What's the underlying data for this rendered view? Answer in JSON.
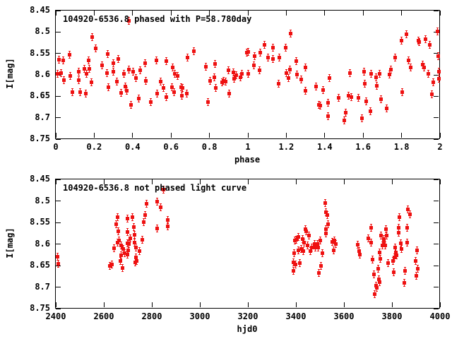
{
  "background_color": "#ffffff",
  "frame_color": "#000000",
  "point_color": "#ee1111",
  "marker": "filled-square-with-error-bar",
  "chart_data": [
    {
      "type": "scatter",
      "title": "104920-6536.8 phased with P=58.780day",
      "xlabel": "phase",
      "ylabel": "I[mag]",
      "xlim": [
        0,
        2
      ],
      "ylim": [
        8.45,
        8.75
      ],
      "y_axis_reversed": true,
      "grid": false,
      "legend": "none",
      "xticks": [
        "0",
        "0.2",
        "0.4",
        "0.6",
        "0.8",
        "1",
        "1.2",
        "1.4",
        "1.6",
        "1.8",
        "2"
      ],
      "yticks": [
        "8.45",
        "8.5",
        "8.55",
        "8.6",
        "8.65",
        "8.7",
        "8.75"
      ],
      "points": [
        [
          0.01,
          8.597
        ],
        [
          0.017,
          8.564
        ],
        [
          0.027,
          8.596
        ],
        [
          0.037,
          8.567
        ],
        [
          0.042,
          8.612
        ],
        [
          0.07,
          8.553
        ],
        [
          0.076,
          8.602
        ],
        [
          0.086,
          8.641
        ],
        [
          0.119,
          8.592
        ],
        [
          0.121,
          8.612
        ],
        [
          0.128,
          8.641
        ],
        [
          0.15,
          8.586
        ],
        [
          0.157,
          8.643
        ],
        [
          0.159,
          8.598
        ],
        [
          0.172,
          8.567
        ],
        [
          0.175,
          8.586
        ],
        [
          0.186,
          8.618
        ],
        [
          0.19,
          8.512
        ],
        [
          0.206,
          8.538
        ],
        [
          0.239,
          8.577
        ],
        [
          0.267,
          8.596
        ],
        [
          0.272,
          8.552
        ],
        [
          0.275,
          8.629
        ],
        [
          0.298,
          8.572
        ],
        [
          0.301,
          8.592
        ],
        [
          0.319,
          8.615
        ],
        [
          0.325,
          8.563
        ],
        [
          0.339,
          8.642
        ],
        [
          0.355,
          8.597
        ],
        [
          0.363,
          8.627
        ],
        [
          0.37,
          8.637
        ],
        [
          0.379,
          8.474
        ],
        [
          0.382,
          8.588
        ],
        [
          0.392,
          8.67
        ],
        [
          0.404,
          8.592
        ],
        [
          0.419,
          8.608
        ],
        [
          0.431,
          8.656
        ],
        [
          0.438,
          8.59
        ],
        [
          0.466,
          8.572
        ],
        [
          0.469,
          8.614
        ],
        [
          0.494,
          8.664
        ],
        [
          0.525,
          8.567
        ],
        [
          0.527,
          8.643
        ],
        [
          0.547,
          8.615
        ],
        [
          0.559,
          8.631
        ],
        [
          0.576,
          8.568
        ],
        [
          0.576,
          8.652
        ],
        [
          0.604,
          8.629
        ],
        [
          0.61,
          8.583
        ],
        [
          0.616,
          8.64
        ],
        [
          0.62,
          8.597
        ],
        [
          0.635,
          8.603
        ],
        [
          0.653,
          8.629
        ],
        [
          0.657,
          8.648
        ],
        [
          0.66,
          8.631
        ],
        [
          0.681,
          8.643
        ],
        [
          0.686,
          8.559
        ],
        [
          0.718,
          8.544
        ],
        [
          0.782,
          8.581
        ],
        [
          0.794,
          8.664
        ],
        [
          0.803,
          8.614
        ],
        [
          0.825,
          8.605
        ],
        [
          0.828,
          8.575
        ],
        [
          0.831,
          8.631
        ],
        [
          0.865,
          8.618
        ],
        [
          0.874,
          8.614
        ],
        [
          0.883,
          8.615
        ],
        [
          0.898,
          8.59
        ],
        [
          0.904,
          8.643
        ],
        [
          0.923,
          8.594
        ],
        [
          0.929,
          8.609
        ],
        [
          0.938,
          8.6
        ],
        [
          0.963,
          8.605
        ],
        [
          0.968,
          8.597
        ],
        [
          0.993,
          8.548
        ],
        [
          1.0,
          8.546
        ],
        [
          1.002,
          8.597
        ],
        [
          1.031,
          8.577
        ],
        [
          1.034,
          8.557
        ],
        [
          1.059,
          8.59
        ],
        [
          1.064,
          8.548
        ],
        [
          1.086,
          8.53
        ],
        [
          1.104,
          8.559
        ],
        [
          1.129,
          8.537
        ],
        [
          1.132,
          8.563
        ],
        [
          1.159,
          8.62
        ],
        [
          1.165,
          8.56
        ],
        [
          1.196,
          8.537
        ],
        [
          1.199,
          8.596
        ],
        [
          1.211,
          8.607
        ],
        [
          1.218,
          8.587
        ],
        [
          1.221,
          8.504
        ],
        [
          1.251,
          8.568
        ],
        [
          1.257,
          8.599
        ],
        [
          1.276,
          8.61
        ],
        [
          1.3,
          8.582
        ],
        [
          1.3,
          8.637
        ],
        [
          1.355,
          8.627
        ],
        [
          1.37,
          8.67
        ],
        [
          1.376,
          8.672
        ],
        [
          1.39,
          8.636
        ],
        [
          1.419,
          8.665
        ],
        [
          1.419,
          8.696
        ],
        [
          1.423,
          8.608
        ],
        [
          1.472,
          8.654
        ],
        [
          1.5,
          8.707
        ],
        [
          1.509,
          8.689
        ],
        [
          1.525,
          8.648
        ],
        [
          1.533,
          8.596
        ],
        [
          1.539,
          8.652
        ],
        [
          1.574,
          8.653
        ],
        [
          1.595,
          8.702
        ],
        [
          1.603,
          8.592
        ],
        [
          1.607,
          8.621
        ],
        [
          1.615,
          8.661
        ],
        [
          1.637,
          8.685
        ],
        [
          1.64,
          8.597
        ],
        [
          1.668,
          8.605
        ],
        [
          1.672,
          8.626
        ],
        [
          1.684,
          8.597
        ],
        [
          1.693,
          8.657
        ],
        [
          1.723,
          8.679
        ],
        [
          1.738,
          8.599
        ],
        [
          1.745,
          8.588
        ],
        [
          1.766,
          8.559
        ],
        [
          1.799,
          8.52
        ],
        [
          1.803,
          8.641
        ],
        [
          1.824,
          8.506
        ],
        [
          1.836,
          8.566
        ],
        [
          1.848,
          8.582
        ],
        [
          1.889,
          8.52
        ],
        [
          1.893,
          8.523
        ],
        [
          1.91,
          8.576
        ],
        [
          1.919,
          8.582
        ],
        [
          1.925,
          8.517
        ],
        [
          1.941,
          8.597
        ],
        [
          1.946,
          8.53
        ],
        [
          1.956,
          8.645
        ],
        [
          1.966,
          8.618
        ],
        [
          1.986,
          8.498
        ],
        [
          1.99,
          8.557
        ],
        [
          1.993,
          8.609
        ],
        [
          1.995,
          8.592
        ]
      ]
    },
    {
      "type": "scatter",
      "title": "104920-6536.8 not phased light curve",
      "xlabel": "hjd0",
      "ylabel": "I[mag]",
      "xlim": [
        2400,
        4000
      ],
      "ylim": [
        8.45,
        8.75
      ],
      "y_axis_reversed": true,
      "grid": false,
      "legend": "none",
      "xticks": [
        "2400",
        "2600",
        "2800",
        "3000",
        "3200",
        "3400",
        "3600",
        "3800",
        "4000"
      ],
      "yticks": [
        "8.45",
        "8.5",
        "8.55",
        "8.6",
        "8.65",
        "8.7",
        "8.75"
      ],
      "points": [
        [
          2406,
          8.63
        ],
        [
          2409,
          8.646
        ],
        [
          2626,
          8.65
        ],
        [
          2633,
          8.647
        ],
        [
          2643,
          8.61
        ],
        [
          2651,
          8.554
        ],
        [
          2656,
          8.538
        ],
        [
          2656,
          8.596
        ],
        [
          2661,
          8.57
        ],
        [
          2663,
          8.592
        ],
        [
          2669,
          8.64
        ],
        [
          2671,
          8.627
        ],
        [
          2673,
          8.603
        ],
        [
          2679,
          8.656
        ],
        [
          2680,
          8.612
        ],
        [
          2688,
          8.621
        ],
        [
          2698,
          8.541
        ],
        [
          2698,
          8.572
        ],
        [
          2698,
          8.599
        ],
        [
          2698,
          8.625
        ],
        [
          2700,
          8.614
        ],
        [
          2704,
          8.6
        ],
        [
          2710,
          8.587
        ],
        [
          2718,
          8.538
        ],
        [
          2724,
          8.56
        ],
        [
          2727,
          8.579
        ],
        [
          2727,
          8.597
        ],
        [
          2731,
          8.643
        ],
        [
          2734,
          8.608
        ],
        [
          2734,
          8.631
        ],
        [
          2737,
          8.64
        ],
        [
          2749,
          8.617
        ],
        [
          2761,
          8.59
        ],
        [
          2767,
          8.549
        ],
        [
          2771,
          8.532
        ],
        [
          2778,
          8.507
        ],
        [
          2823,
          8.501
        ],
        [
          2823,
          8.564
        ],
        [
          2838,
          8.515
        ],
        [
          2849,
          8.473
        ],
        [
          2865,
          8.545
        ],
        [
          2867,
          8.559
        ],
        [
          3389,
          8.643
        ],
        [
          3391,
          8.663
        ],
        [
          3393,
          8.622
        ],
        [
          3396,
          8.592
        ],
        [
          3399,
          8.647
        ],
        [
          3401,
          8.59
        ],
        [
          3409,
          8.584
        ],
        [
          3411,
          8.615
        ],
        [
          3416,
          8.644
        ],
        [
          3423,
          8.612
        ],
        [
          3429,
          8.588
        ],
        [
          3430,
          8.616
        ],
        [
          3433,
          8.597
        ],
        [
          3440,
          8.566
        ],
        [
          3443,
          8.57
        ],
        [
          3448,
          8.604
        ],
        [
          3455,
          8.581
        ],
        [
          3460,
          8.616
        ],
        [
          3465,
          8.608
        ],
        [
          3477,
          8.6
        ],
        [
          3481,
          8.608
        ],
        [
          3489,
          8.6
        ],
        [
          3494,
          8.609
        ],
        [
          3497,
          8.668
        ],
        [
          3501,
          8.592
        ],
        [
          3505,
          8.65
        ],
        [
          3509,
          8.621
        ],
        [
          3521,
          8.505
        ],
        [
          3524,
          8.527
        ],
        [
          3524,
          8.575
        ],
        [
          3526,
          8.565
        ],
        [
          3530,
          8.533
        ],
        [
          3533,
          8.554
        ],
        [
          3550,
          8.595
        ],
        [
          3558,
          8.615
        ],
        [
          3560,
          8.591
        ],
        [
          3566,
          8.6
        ],
        [
          3656,
          8.601
        ],
        [
          3664,
          8.617
        ],
        [
          3666,
          8.624
        ],
        [
          3700,
          8.587
        ],
        [
          3713,
          8.562
        ],
        [
          3713,
          8.597
        ],
        [
          3720,
          8.636
        ],
        [
          3726,
          8.67
        ],
        [
          3729,
          8.717
        ],
        [
          3734,
          8.696
        ],
        [
          3736,
          8.702
        ],
        [
          3742,
          8.657
        ],
        [
          3746,
          8.682
        ],
        [
          3749,
          8.619
        ],
        [
          3749,
          8.689
        ],
        [
          3752,
          8.634
        ],
        [
          3754,
          8.58
        ],
        [
          3759,
          8.604
        ],
        [
          3766,
          8.588
        ],
        [
          3766,
          8.597
        ],
        [
          3772,
          8.604
        ],
        [
          3776,
          8.566
        ],
        [
          3779,
          8.58
        ],
        [
          3783,
          8.644
        ],
        [
          3805,
          8.64
        ],
        [
          3808,
          8.666
        ],
        [
          3811,
          8.631
        ],
        [
          3813,
          8.609
        ],
        [
          3815,
          8.62
        ],
        [
          3818,
          8.626
        ],
        [
          3827,
          8.573
        ],
        [
          3829,
          8.562
        ],
        [
          3832,
          8.538
        ],
        [
          3837,
          8.599
        ],
        [
          3840,
          8.612
        ],
        [
          3851,
          8.69
        ],
        [
          3853,
          8.662
        ],
        [
          3862,
          8.562
        ],
        [
          3862,
          8.597
        ],
        [
          3867,
          8.52
        ],
        [
          3874,
          8.531
        ],
        [
          3899,
          8.639
        ],
        [
          3901,
          8.673
        ],
        [
          3903,
          8.615
        ],
        [
          3906,
          8.657
        ]
      ]
    }
  ]
}
